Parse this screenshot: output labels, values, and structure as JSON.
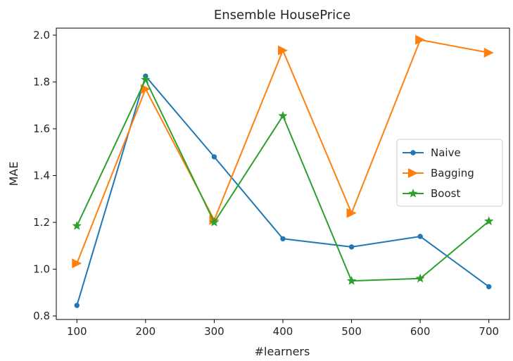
{
  "chart_data": {
    "type": "line",
    "title": "Ensemble HousePrice",
    "xlabel": "#learners",
    "ylabel": "MAE",
    "x": [
      100,
      200,
      300,
      400,
      500,
      600,
      700
    ],
    "xticks": [
      "100",
      "200",
      "300",
      "400",
      "500",
      "600",
      "700"
    ],
    "yticks": [
      "0.8",
      "1.0",
      "1.2",
      "1.4",
      "1.6",
      "1.8",
      "2.0"
    ],
    "ytick_values": [
      0.8,
      1.0,
      1.2,
      1.4,
      1.6,
      1.8,
      2.0
    ],
    "xlim": [
      70,
      730
    ],
    "ylim": [
      0.785,
      2.03
    ],
    "grid": false,
    "legend_position": "center-right",
    "series": [
      {
        "name": "Naive",
        "color": "#1f77b4",
        "marker": "point",
        "values": [
          0.845,
          1.825,
          1.48,
          1.13,
          1.095,
          1.14,
          0.925
        ]
      },
      {
        "name": "Bagging",
        "color": "#ff7f0e",
        "marker": "triangle-right",
        "values": [
          1.025,
          1.77,
          1.21,
          1.935,
          1.24,
          1.98,
          1.925
        ]
      },
      {
        "name": "Boost",
        "color": "#2ca02c",
        "marker": "star",
        "values": [
          1.185,
          1.81,
          1.2,
          1.655,
          0.95,
          0.96,
          1.205
        ]
      }
    ]
  }
}
